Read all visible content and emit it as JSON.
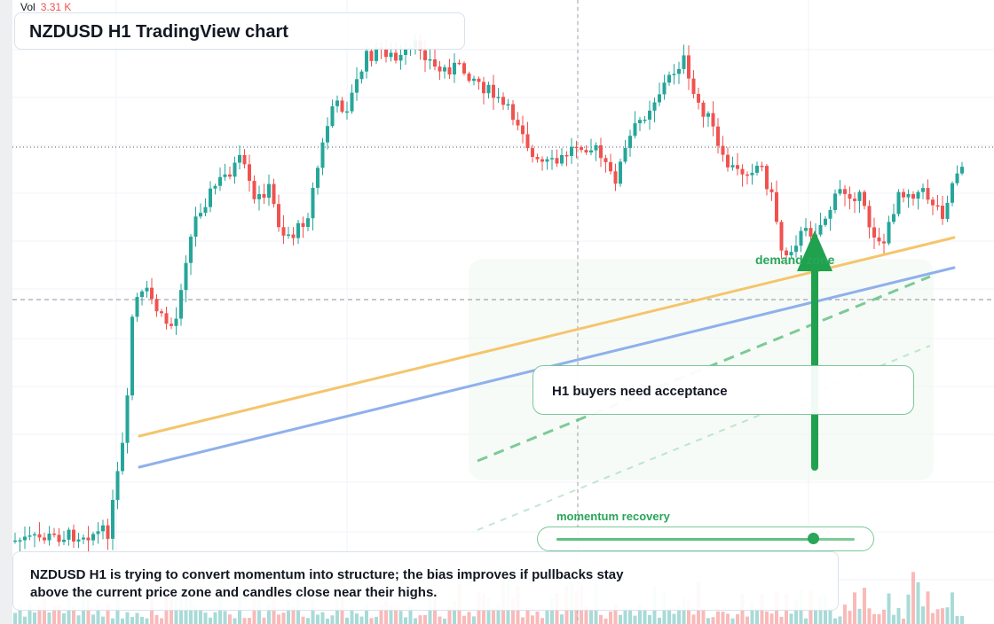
{
  "volume": {
    "label": "Vol",
    "value": "3.31 K"
  },
  "title": "NZDUSD H1 TradingView chart",
  "annotations": {
    "demand_zone": "demand zone",
    "callout": "H1 buyers need acceptance",
    "momentum_label": "momentum recovery",
    "momentum_level": 0.86
  },
  "note": "NZDUSD H1 is trying to convert momentum into structure; the bias improves if pullbacks stay above the current price zone and candles close near their highs.",
  "colors": {
    "bull": "#26a69a",
    "bear": "#ef5350",
    "support_line": "#f5c56b",
    "trend_line": "#8fb0ec",
    "accent_green": "#2aa55a"
  },
  "icons": [
    "up-arrow-icon"
  ]
}
